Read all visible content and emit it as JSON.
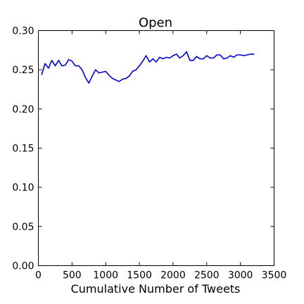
{
  "chart_data": {
    "type": "line",
    "title": "Open",
    "xlabel": "Cumulative Number of Tweets",
    "ylabel": "",
    "xlim": [
      0,
      3500
    ],
    "ylim": [
      0.0,
      0.3
    ],
    "xticks": [
      0,
      500,
      1000,
      1500,
      2000,
      2500,
      3000,
      3500
    ],
    "xtick_labels": [
      "0",
      "500",
      "1000",
      "1500",
      "2000",
      "2500",
      "3000",
      "3500"
    ],
    "yticks": [
      0.0,
      0.05,
      0.1,
      0.15,
      0.2,
      0.25,
      0.3
    ],
    "ytick_labels": [
      "0.00",
      "0.05",
      "0.10",
      "0.15",
      "0.20",
      "0.25",
      "0.30"
    ],
    "grid": false,
    "colors": {
      "series": "#0000cc",
      "axes": "#000000"
    },
    "series": [
      {
        "x": [
          50,
          100,
          150,
          200,
          250,
          300,
          350,
          400,
          450,
          500,
          550,
          600,
          650,
          700,
          750,
          800,
          850,
          900,
          950,
          1000,
          1050,
          1100,
          1150,
          1200,
          1250,
          1300,
          1350,
          1400,
          1450,
          1500,
          1550,
          1600,
          1650,
          1700,
          1750,
          1800,
          1850,
          1900,
          1950,
          2000,
          2050,
          2100,
          2150,
          2200,
          2250,
          2300,
          2350,
          2400,
          2450,
          2500,
          2550,
          2600,
          2650,
          2700,
          2750,
          2800,
          2850,
          2900,
          2950,
          3000,
          3050,
          3100,
          3150,
          3200
        ],
        "values": [
          0.244,
          0.258,
          0.252,
          0.262,
          0.255,
          0.262,
          0.255,
          0.256,
          0.263,
          0.261,
          0.255,
          0.255,
          0.25,
          0.24,
          0.233,
          0.242,
          0.25,
          0.246,
          0.247,
          0.248,
          0.243,
          0.239,
          0.237,
          0.235,
          0.238,
          0.239,
          0.242,
          0.248,
          0.25,
          0.255,
          0.261,
          0.268,
          0.26,
          0.264,
          0.26,
          0.266,
          0.264,
          0.266,
          0.265,
          0.268,
          0.27,
          0.265,
          0.268,
          0.273,
          0.262,
          0.262,
          0.267,
          0.264,
          0.264,
          0.268,
          0.265,
          0.265,
          0.269,
          0.269,
          0.264,
          0.265,
          0.268,
          0.266,
          0.269,
          0.269,
          0.268,
          0.269,
          0.27,
          0.27
        ]
      }
    ]
  }
}
